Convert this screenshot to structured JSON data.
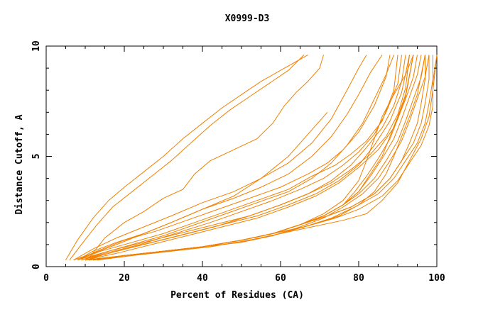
{
  "chart_data": {
    "type": "line",
    "title": "X0999-D3",
    "xlabel": "Percent of Residues (CA)",
    "ylabel": "Distance Cutoff, A",
    "xlim": [
      0,
      100
    ],
    "ylim": [
      0,
      10
    ],
    "x_ticks": [
      "0",
      "20",
      "40",
      "60",
      "80",
      "100"
    ],
    "y_ticks": [
      "0",
      "5",
      "10"
    ],
    "grid": false,
    "line_color": "#f08000",
    "series": [
      {
        "x": [
          5,
          8,
          12,
          16,
          20,
          25,
          30,
          35,
          40,
          45,
          50,
          55,
          60,
          65,
          67
        ],
        "y": [
          0.3,
          1.2,
          2.2,
          3.0,
          3.6,
          4.3,
          5.0,
          5.8,
          6.5,
          7.2,
          7.8,
          8.4,
          8.9,
          9.4,
          9.6
        ]
      },
      {
        "x": [
          6,
          9,
          13,
          17,
          22,
          27,
          32,
          37,
          42,
          47,
          52,
          57,
          62,
          66
        ],
        "y": [
          0.3,
          1.0,
          1.9,
          2.7,
          3.4,
          4.1,
          4.8,
          5.6,
          6.4,
          7.1,
          7.7,
          8.3,
          8.9,
          9.6
        ]
      },
      {
        "x": [
          11,
          15,
          20,
          25,
          30,
          35,
          38,
          42,
          48,
          54,
          58,
          61,
          64,
          67,
          70,
          71
        ],
        "y": [
          0.4,
          1.3,
          2.0,
          2.5,
          3.1,
          3.5,
          4.2,
          4.8,
          5.3,
          5.8,
          6.5,
          7.3,
          7.9,
          8.4,
          9.0,
          9.6
        ]
      },
      {
        "x": [
          8,
          12,
          18,
          25,
          32,
          40,
          48,
          55,
          62,
          66,
          70,
          72
        ],
        "y": [
          0.3,
          0.7,
          1.1,
          1.5,
          2.0,
          2.6,
          3.2,
          4.0,
          5.0,
          5.8,
          6.6,
          7.0
        ]
      },
      {
        "x": [
          7,
          12,
          18,
          25,
          32,
          40,
          48,
          55,
          62,
          68,
          73,
          77,
          80,
          82
        ],
        "y": [
          0.3,
          0.8,
          1.3,
          1.8,
          2.3,
          2.9,
          3.4,
          4.0,
          4.7,
          5.6,
          6.7,
          8.0,
          9.0,
          9.6
        ]
      },
      {
        "x": [
          7,
          12,
          18,
          25,
          32,
          40,
          48,
          55,
          62,
          68,
          73,
          77,
          80,
          83,
          86
        ],
        "y": [
          0.3,
          0.6,
          1.0,
          1.5,
          2.0,
          2.6,
          3.1,
          3.6,
          4.2,
          5.0,
          5.9,
          6.9,
          7.8,
          8.8,
          9.6
        ]
      },
      {
        "x": [
          8,
          13,
          20,
          28,
          36,
          44,
          52,
          60,
          67,
          72,
          76,
          80,
          84,
          87,
          88
        ],
        "y": [
          0.3,
          0.7,
          1.2,
          1.6,
          2.1,
          2.6,
          3.1,
          3.6,
          4.2,
          4.7,
          5.3,
          6.1,
          7.3,
          8.6,
          9.6
        ]
      },
      {
        "x": [
          8,
          14,
          22,
          30,
          38,
          46,
          54,
          62,
          68,
          73,
          77,
          81,
          84,
          87,
          89
        ],
        "y": [
          0.3,
          0.6,
          1.0,
          1.4,
          1.9,
          2.4,
          2.9,
          3.4,
          4.0,
          4.7,
          5.5,
          6.5,
          7.6,
          8.7,
          9.6
        ]
      },
      {
        "x": [
          8,
          14,
          22,
          30,
          38,
          46,
          54,
          62,
          68,
          74,
          78,
          82,
          86,
          89,
          90
        ],
        "y": [
          0.3,
          0.7,
          1.1,
          1.5,
          2.0,
          2.5,
          3.0,
          3.5,
          4.1,
          4.6,
          5.1,
          5.7,
          6.6,
          8.0,
          9.6
        ]
      },
      {
        "x": [
          9,
          15,
          24,
          33,
          42,
          50,
          58,
          65,
          71,
          76,
          80,
          84,
          87,
          90,
          91
        ],
        "y": [
          0.3,
          0.6,
          1.0,
          1.5,
          2.0,
          2.5,
          3.0,
          3.5,
          4.0,
          4.6,
          5.2,
          6.0,
          7.0,
          8.3,
          9.6
        ]
      },
      {
        "x": [
          9,
          16,
          25,
          34,
          43,
          52,
          60,
          67,
          73,
          78,
          82,
          86,
          89,
          91,
          92
        ],
        "y": [
          0.3,
          0.7,
          1.1,
          1.5,
          1.9,
          2.3,
          2.8,
          3.3,
          3.9,
          4.6,
          5.4,
          6.3,
          7.3,
          8.4,
          9.6
        ]
      },
      {
        "x": [
          9,
          16,
          25,
          34,
          43,
          52,
          60,
          67,
          73,
          78,
          83,
          87,
          90,
          92,
          93
        ],
        "y": [
          0.3,
          0.6,
          1.0,
          1.4,
          1.8,
          2.3,
          2.8,
          3.3,
          3.8,
          4.4,
          5.1,
          5.9,
          6.9,
          8.1,
          9.6
        ]
      },
      {
        "x": [
          10,
          18,
          27,
          36,
          45,
          54,
          62,
          69,
          75,
          80,
          84,
          88,
          91,
          93
        ],
        "y": [
          0.3,
          0.7,
          1.1,
          1.5,
          1.9,
          2.3,
          2.8,
          3.3,
          3.9,
          4.6,
          5.5,
          6.6,
          7.9,
          9.6
        ]
      },
      {
        "x": [
          10,
          18,
          27,
          36,
          45,
          54,
          62,
          69,
          75,
          80,
          85,
          89,
          92,
          94
        ],
        "y": [
          0.3,
          0.6,
          1.0,
          1.4,
          1.8,
          2.2,
          2.7,
          3.2,
          3.8,
          4.5,
          5.3,
          6.3,
          7.7,
          9.6
        ]
      },
      {
        "x": [
          10,
          20,
          30,
          40,
          50,
          58,
          65,
          71,
          76,
          80,
          83,
          86,
          88,
          90,
          92,
          93,
          94
        ],
        "y": [
          0.3,
          0.5,
          0.7,
          0.9,
          1.2,
          1.5,
          1.9,
          2.3,
          2.8,
          3.4,
          4.2,
          5.0,
          5.9,
          6.8,
          7.8,
          8.7,
          9.6
        ]
      },
      {
        "x": [
          10,
          20,
          30,
          40,
          50,
          58,
          65,
          71,
          76,
          79,
          82,
          85,
          88,
          90,
          92,
          94,
          95
        ],
        "y": [
          0.3,
          0.5,
          0.7,
          0.9,
          1.2,
          1.5,
          1.9,
          2.3,
          2.8,
          3.4,
          4.1,
          4.9,
          5.8,
          6.7,
          7.6,
          8.6,
          9.6
        ]
      },
      {
        "x": [
          11,
          20,
          30,
          40,
          50,
          58,
          65,
          71,
          76,
          80,
          83,
          86,
          89,
          91,
          93,
          95,
          96
        ],
        "y": [
          0.3,
          0.5,
          0.7,
          0.9,
          1.2,
          1.5,
          1.9,
          2.3,
          2.8,
          3.4,
          4.1,
          4.9,
          5.8,
          6.7,
          7.7,
          8.7,
          9.6
        ]
      },
      {
        "x": [
          11,
          20,
          30,
          40,
          50,
          58,
          65,
          71,
          76,
          80,
          84,
          87,
          90,
          92,
          94,
          96,
          97
        ],
        "y": [
          0.3,
          0.5,
          0.7,
          0.9,
          1.2,
          1.5,
          1.9,
          2.3,
          2.8,
          3.3,
          4.0,
          4.8,
          5.7,
          6.6,
          7.6,
          8.6,
          9.6
        ]
      },
      {
        "x": [
          11,
          20,
          30,
          40,
          50,
          58,
          65,
          71,
          76,
          81,
          85,
          88,
          91,
          93,
          95,
          97,
          98
        ],
        "y": [
          0.3,
          0.5,
          0.7,
          0.9,
          1.1,
          1.4,
          1.8,
          2.2,
          2.7,
          3.3,
          4.0,
          4.8,
          5.7,
          6.6,
          7.6,
          8.6,
          9.6
        ]
      },
      {
        "x": [
          11,
          20,
          30,
          40,
          50,
          58,
          65,
          71,
          76,
          80,
          82,
          84,
          86,
          89,
          92,
          94
        ],
        "y": [
          0.3,
          0.5,
          0.7,
          0.9,
          1.2,
          1.5,
          1.9,
          2.4,
          3.0,
          3.9,
          4.8,
          5.8,
          6.8,
          7.8,
          8.7,
          9.6
        ]
      },
      {
        "x": [
          12,
          20,
          30,
          40,
          50,
          58,
          65,
          72,
          78,
          84,
          88,
          91,
          93,
          95,
          96,
          97,
          97
        ],
        "y": [
          0.3,
          0.5,
          0.7,
          0.9,
          1.2,
          1.5,
          1.9,
          2.3,
          2.7,
          3.3,
          4.0,
          4.8,
          5.6,
          6.5,
          7.4,
          8.5,
          9.6
        ]
      },
      {
        "x": [
          12,
          20,
          30,
          40,
          50,
          58,
          65,
          72,
          78,
          84,
          88,
          91,
          94,
          96,
          97,
          98,
          98
        ],
        "y": [
          0.3,
          0.5,
          0.7,
          0.9,
          1.2,
          1.5,
          1.9,
          2.3,
          2.7,
          3.3,
          4.0,
          4.8,
          5.6,
          6.5,
          7.4,
          8.5,
          9.6
        ]
      },
      {
        "x": [
          12,
          20,
          30,
          40,
          50,
          58,
          66,
          73,
          79,
          85,
          89,
          92,
          95,
          97,
          98,
          99,
          99
        ],
        "y": [
          0.3,
          0.5,
          0.7,
          0.9,
          1.2,
          1.5,
          1.8,
          2.2,
          2.7,
          3.3,
          4.0,
          4.8,
          5.6,
          6.5,
          7.4,
          8.5,
          9.6
        ]
      },
      {
        "x": [
          12,
          20,
          30,
          40,
          50,
          58,
          66,
          74,
          80,
          86,
          90,
          93,
          96,
          98,
          99,
          99,
          100
        ],
        "y": [
          0.3,
          0.5,
          0.7,
          0.9,
          1.2,
          1.5,
          1.8,
          2.2,
          2.6,
          3.2,
          3.9,
          4.7,
          5.5,
          6.4,
          7.3,
          8.4,
          9.6
        ]
      },
      {
        "x": [
          13,
          22,
          32,
          42,
          52,
          60,
          68,
          76,
          82,
          86,
          90,
          93,
          96,
          98,
          99,
          100
        ],
        "y": [
          0.3,
          0.5,
          0.7,
          0.9,
          1.2,
          1.5,
          1.8,
          2.1,
          2.4,
          3.0,
          3.8,
          4.8,
          5.8,
          6.8,
          8.0,
          9.6
        ]
      },
      {
        "x": [
          13,
          22,
          32,
          42,
          52,
          60,
          68,
          75,
          80,
          84,
          87,
          89,
          91,
          93,
          95,
          96,
          97
        ],
        "y": [
          0.3,
          0.5,
          0.7,
          0.9,
          1.2,
          1.5,
          1.9,
          2.3,
          2.8,
          3.4,
          4.2,
          5.0,
          5.9,
          6.8,
          7.8,
          8.7,
          9.6
        ]
      }
    ]
  }
}
